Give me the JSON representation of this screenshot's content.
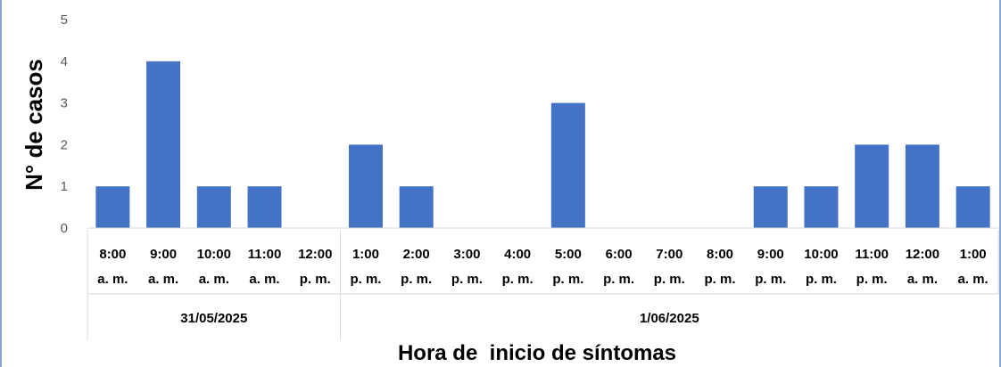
{
  "chart_data": {
    "type": "bar",
    "categories": [
      [
        "8:00",
        "a. m."
      ],
      [
        "9:00",
        "a. m."
      ],
      [
        "10:00",
        "a. m."
      ],
      [
        "11:00",
        "a. m."
      ],
      [
        "12:00",
        "p. m."
      ],
      [
        "1:00",
        "p. m."
      ],
      [
        "2:00",
        "p. m."
      ],
      [
        "3:00",
        "p. m."
      ],
      [
        "4:00",
        "p. m."
      ],
      [
        "5:00",
        "p. m."
      ],
      [
        "6:00",
        "p. m."
      ],
      [
        "7:00",
        "p. m."
      ],
      [
        "8:00",
        "p. m."
      ],
      [
        "9:00",
        "p. m."
      ],
      [
        "10:00",
        "p. m."
      ],
      [
        "11:00",
        "p. m."
      ],
      [
        "12:00",
        "a. m."
      ],
      [
        "1:00",
        "a. m."
      ]
    ],
    "values": [
      1,
      4,
      1,
      1,
      0,
      2,
      1,
      0,
      0,
      3,
      0,
      0,
      0,
      1,
      1,
      2,
      2,
      1
    ],
    "groups": [
      {
        "label": "31/05/2025",
        "count": 5
      },
      {
        "label": "1/06/2025",
        "count": 13
      }
    ],
    "ylabel": "N° de casos",
    "xlabel": "Hora de  inicio de síntomas",
    "ylim": [
      0,
      5
    ],
    "yticks": [
      0,
      1,
      2,
      3,
      4,
      5
    ],
    "grid": false,
    "bar_color": "#4472c4"
  }
}
